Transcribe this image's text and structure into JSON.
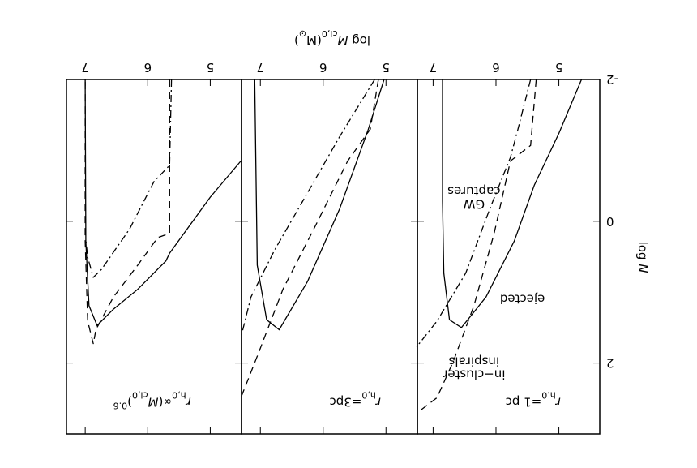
{
  "figure": {
    "xlabel": [
      {
        "text": "log ",
        "pos": "normal"
      },
      {
        "text": "M",
        "pos": "italic"
      },
      {
        "text": "cl,0",
        "pos": "sub"
      },
      {
        "text": "(M",
        "pos": "normal"
      },
      {
        "text": "⊙",
        "pos": "sub"
      },
      {
        "text": ")",
        "pos": "normal"
      }
    ],
    "ylabel": [
      {
        "text": "log ",
        "pos": "normal"
      },
      {
        "text": "N",
        "pos": "italic"
      }
    ]
  },
  "chart_data": [
    {
      "type": "line",
      "title": [
        {
          "text": "r",
          "pos": "italic"
        },
        {
          "text": "h,0",
          "pos": "sub"
        },
        {
          "text": "=1 pc",
          "pos": "normal"
        }
      ],
      "title_at": [
        5.41,
        2.49
      ],
      "xlim": [
        4.35,
        7.25
      ],
      "xticks": [
        5,
        6,
        7
      ],
      "ylim": [
        -2,
        3
      ],
      "yticks": [
        -2,
        0,
        2
      ],
      "series": [
        {
          "linestyle": "solid",
          "color": "#000000",
          "x": [
            4.64,
            5.0,
            5.39,
            5.71,
            6.16,
            6.55,
            6.74,
            6.83,
            6.85,
            6.85
          ],
          "values": [
            -2,
            -1.24,
            -0.51,
            0.28,
            1.07,
            1.5,
            1.39,
            0.73,
            -0.28,
            -2
          ]
        },
        {
          "linestyle": "dashed",
          "color": "#000000",
          "x": [
            5.36,
            5.45,
            5.77,
            6.03,
            6.35,
            6.68,
            6.94,
            7.22
          ],
          "values": [
            -2,
            -1.07,
            -0.85,
            0.17,
            1.19,
            1.98,
            2.49,
            2.68
          ]
        },
        {
          "linestyle": "dashdot",
          "color": "#000000",
          "x": [
            5.45,
            5.65,
            5.77,
            6.1,
            6.48,
            6.94,
            7.26
          ],
          "values": [
            -2,
            -1.3,
            -0.9,
            -0.17,
            0.73,
            1.41,
            1.77
          ]
        }
      ],
      "annotations": [
        {
          "lines": [
            "ejected"
          ],
          "x": 5.58,
          "y": 1.04
        },
        {
          "lines": [
            "GW",
            "captures"
          ],
          "x": 6.35,
          "y": -0.3
        },
        {
          "lines": [
            "in−cluster",
            "inspirals"
          ],
          "x": 6.35,
          "y": 2.1
        }
      ]
    },
    {
      "type": "line",
      "title": [
        {
          "text": "r",
          "pos": "italic"
        },
        {
          "text": "h,0",
          "pos": "sub"
        },
        {
          "text": "=3pc",
          "pos": "normal"
        }
      ],
      "title_at": [
        5.49,
        2.49
      ],
      "xlim": [
        4.5,
        7.3
      ],
      "xticks": [
        5,
        6,
        7
      ],
      "ylim": [
        -2,
        3
      ],
      "series": [
        {
          "linestyle": "solid",
          "color": "#000000",
          "x": [
            5.03,
            5.28,
            5.74,
            6.25,
            6.7,
            6.9,
            7.05,
            7.09
          ],
          "values": [
            -2,
            -1.3,
            -0.17,
            0.85,
            1.53,
            1.39,
            0.62,
            -2
          ]
        },
        {
          "linestyle": "dashed",
          "color": "#000000",
          "x": [
            5.12,
            5.25,
            5.61,
            6.12,
            6.64,
            7.03,
            7.31
          ],
          "values": [
            -2,
            -1.3,
            -0.85,
            0.06,
            0.96,
            1.86,
            2.49
          ]
        },
        {
          "linestyle": "dashdot",
          "color": "#000000",
          "x": [
            5.18,
            5.74,
            6.25,
            6.77,
            7.15,
            7.31
          ],
          "values": [
            -2,
            -1.19,
            -0.4,
            0.4,
            1.07,
            1.64
          ]
        }
      ]
    },
    {
      "type": "line",
      "title": [
        {
          "text": "r",
          "pos": "italic"
        },
        {
          "text": "h,0",
          "pos": "sub"
        },
        {
          "text": "∝(",
          "pos": "normal"
        },
        {
          "text": "M",
          "pos": "italic"
        },
        {
          "text": "cl,0",
          "pos": "sub"
        },
        {
          "text": ")",
          "pos": "normal"
        },
        {
          "text": "0.6",
          "pos": "sup"
        }
      ],
      "title_at": [
        5.93,
        2.49
      ],
      "xlim": [
        4.5,
        7.3
      ],
      "xticks": [
        5,
        6,
        7
      ],
      "ylim": [
        -2,
        3
      ],
      "series": [
        {
          "linestyle": "solid",
          "color": "#000000",
          "x": [
            4.51,
            5.0,
            5.65,
            5.71,
            6.16,
            6.55,
            6.81,
            6.94,
            6.99,
            7.0
          ],
          "values": [
            -0.85,
            -0.34,
            0.45,
            0.56,
            0.96,
            1.24,
            1.47,
            1.19,
            0.28,
            -2
          ]
        },
        {
          "linestyle": "dashed",
          "color": "#000000",
          "x": [
            5.65,
            5.65,
            5.84,
            6.16,
            6.55,
            6.83,
            6.87,
            6.96,
            7.0,
            7.0
          ],
          "values": [
            -2,
            0.17,
            0.23,
            0.62,
            1.07,
            1.53,
            1.73,
            1.41,
            0.28,
            -2
          ]
        },
        {
          "linestyle": "dashdot",
          "color": "#000000",
          "x": [
            5.62,
            5.65,
            5.9,
            6.29,
            6.74,
            6.87,
            6.96,
            6.99
          ],
          "values": [
            -2,
            -0.79,
            -0.56,
            0.11,
            0.68,
            0.79,
            0.51,
            0.26
          ]
        }
      ]
    }
  ]
}
